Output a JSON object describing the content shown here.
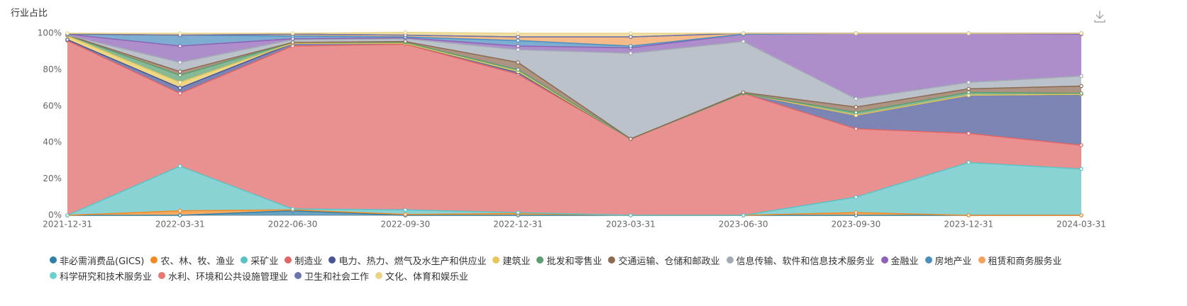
{
  "chart_data": {
    "type": "stacked-area",
    "title": "行业占比",
    "categories": [
      "2021-12-31",
      "2022-03-31",
      "2022-06-30",
      "2022-09-30",
      "2022-12-31",
      "2023-03-31",
      "2023-06-30",
      "2023-09-30",
      "2023-12-31",
      "2024-03-31"
    ],
    "ylim": [
      0,
      100
    ],
    "yticks": [
      {
        "value": 0,
        "label": "0%"
      },
      {
        "value": 20,
        "label": "20%"
      },
      {
        "value": 40,
        "label": "40%"
      },
      {
        "value": 60,
        "label": "60%"
      },
      {
        "value": 80,
        "label": "80%"
      },
      {
        "value": 100,
        "label": "100%"
      }
    ],
    "grid": false,
    "series": [
      {
        "name": "非必需消费品(GICS)",
        "color": "#2f7fa8",
        "values": [
          0,
          0,
          2.5,
          0,
          0,
          0,
          0,
          0,
          0,
          0
        ]
      },
      {
        "name": "农、林、牧、渔业",
        "color": "#f08a24",
        "values": [
          0,
          2.5,
          0.5,
          0.5,
          1,
          0,
          0,
          1.5,
          0,
          0
        ]
      },
      {
        "name": "采矿业",
        "color": "#5bc2c4",
        "values": [
          0,
          24.5,
          0.5,
          2.5,
          0.5,
          0,
          0,
          8.5,
          29,
          25.5
        ]
      },
      {
        "name": "制造业",
        "color": "#e06666",
        "values": [
          96,
          40,
          89.5,
          91,
          76,
          42,
          67,
          37.5,
          16,
          13
        ]
      },
      {
        "name": "电力、热力、燃气及水生产和供应业",
        "color": "#4a5596",
        "values": [
          0.5,
          3,
          1.5,
          0.5,
          1,
          0,
          0,
          7.5,
          21,
          28
        ]
      },
      {
        "name": "建筑业",
        "color": "#e6c75a",
        "values": [
          2,
          3,
          0,
          0,
          0.5,
          0,
          0,
          0,
          0,
          0
        ]
      },
      {
        "name": "批发和零售业",
        "color": "#5a9e6f",
        "values": [
          0.5,
          4,
          0.5,
          0.5,
          1,
          0,
          0,
          1.5,
          1.5,
          0.5
        ]
      },
      {
        "name": "交通运输、仓储和邮政业",
        "color": "#8c6a52",
        "values": [
          0,
          2,
          0,
          0.5,
          4,
          0,
          0.5,
          3,
          2,
          4
        ]
      },
      {
        "name": "信息传输、软件和信息技术服务业",
        "color": "#a2aab5",
        "values": [
          0,
          5,
          1.5,
          1.5,
          7,
          47,
          28,
          4.5,
          3.5,
          5.5
        ]
      },
      {
        "name": "金融业",
        "color": "#8e63b5",
        "values": [
          0.5,
          9,
          0.5,
          0.5,
          2,
          3,
          4,
          36,
          27,
          23
        ]
      },
      {
        "name": "房地产业",
        "color": "#4b8fc0",
        "values": [
          0,
          6,
          1.5,
          0.5,
          3,
          1,
          0,
          0,
          0,
          0.5
        ]
      },
      {
        "name": "租赁和商务服务业",
        "color": "#f4a15d",
        "values": [
          0,
          0,
          1,
          1,
          2,
          5,
          0.5,
          0,
          0,
          0
        ]
      },
      {
        "name": "科学研究和技术服务业",
        "color": "#6dd0d0",
        "values": [
          0,
          0,
          0,
          0,
          0,
          0,
          0,
          0,
          0,
          0
        ]
      },
      {
        "name": "水利、环境和公共设施管理业",
        "color": "#e8796f",
        "values": [
          0,
          0,
          0,
          0,
          0,
          0,
          0,
          0,
          0,
          0
        ]
      },
      {
        "name": "卫生和社会工作",
        "color": "#6b75a8",
        "values": [
          0,
          0,
          0,
          0,
          0,
          0,
          0,
          0,
          0,
          0
        ]
      },
      {
        "name": "文化、体育和娱乐业",
        "color": "#e9d385",
        "values": [
          0.5,
          1,
          0.5,
          1.5,
          2,
          2,
          0,
          0,
          0,
          0
        ]
      }
    ]
  }
}
